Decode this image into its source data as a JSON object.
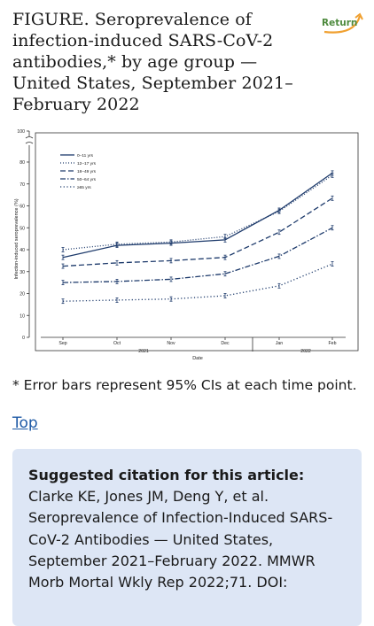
{
  "figure": {
    "title": "FIGURE. Seroprevalence of infection-induced SARS-CoV-2 antibodies,* by age group — United States, September 2021–February 2022"
  },
  "return_button": {
    "label": "Return",
    "icon": "return-arrow-icon",
    "color": "#4d8a3d"
  },
  "chart_data": {
    "type": "line",
    "title": "",
    "xlabel": "Date",
    "ylabel": "Infection-induced seroprevalence (%)",
    "x": [
      "Sep",
      "Oct",
      "Nov",
      "Dec",
      "Jan",
      "Feb"
    ],
    "x_groups": [
      {
        "label": "2021",
        "range": [
          "Sep",
          "Dec"
        ]
      },
      {
        "label": "2022",
        "range": [
          "Jan",
          "Feb"
        ]
      }
    ],
    "yticks": [
      0,
      10,
      20,
      30,
      40,
      50,
      60,
      70,
      80,
      100
    ],
    "ylim": [
      0,
      100
    ],
    "axis_break": "between 80 and 100",
    "error_bars": "95% CIs",
    "legend_position": "top-left",
    "series": [
      {
        "name": "0–11 yrs",
        "style": "solid",
        "values": [
          36.5,
          42,
          43,
          44.5,
          58,
          75
        ]
      },
      {
        "name": "12–17 yrs",
        "style": "dotted",
        "values": [
          40,
          42.5,
          43.5,
          46,
          57.5,
          74
        ]
      },
      {
        "name": "18–49 yrs",
        "style": "dash",
        "values": [
          32.5,
          34,
          35,
          36.5,
          48,
          63.5
        ]
      },
      {
        "name": "50–64 yrs",
        "style": "dashdot",
        "values": [
          25,
          25.5,
          26.5,
          29,
          37,
          50
        ]
      },
      {
        "name": "≥65 yrs",
        "style": "densedot",
        "values": [
          16.5,
          17,
          17.5,
          19,
          23.5,
          33.5
        ]
      }
    ],
    "colors": {
      "line": "#1d3a6b"
    }
  },
  "footnote": "* Error bars represent 95% CIs at each time point.",
  "top_link": "Top",
  "citation": {
    "heading": "Suggested citation for this article:",
    "text": "Clarke KE, Jones JM, Deng Y, et al. Seroprevalence of Infection-Induced SARS-CoV-2 Antibodies — United States, September 2021–February 2022. MMWR Morb Mortal Wkly Rep 2022;71. DOI:",
    "background": "#dde6f5"
  }
}
